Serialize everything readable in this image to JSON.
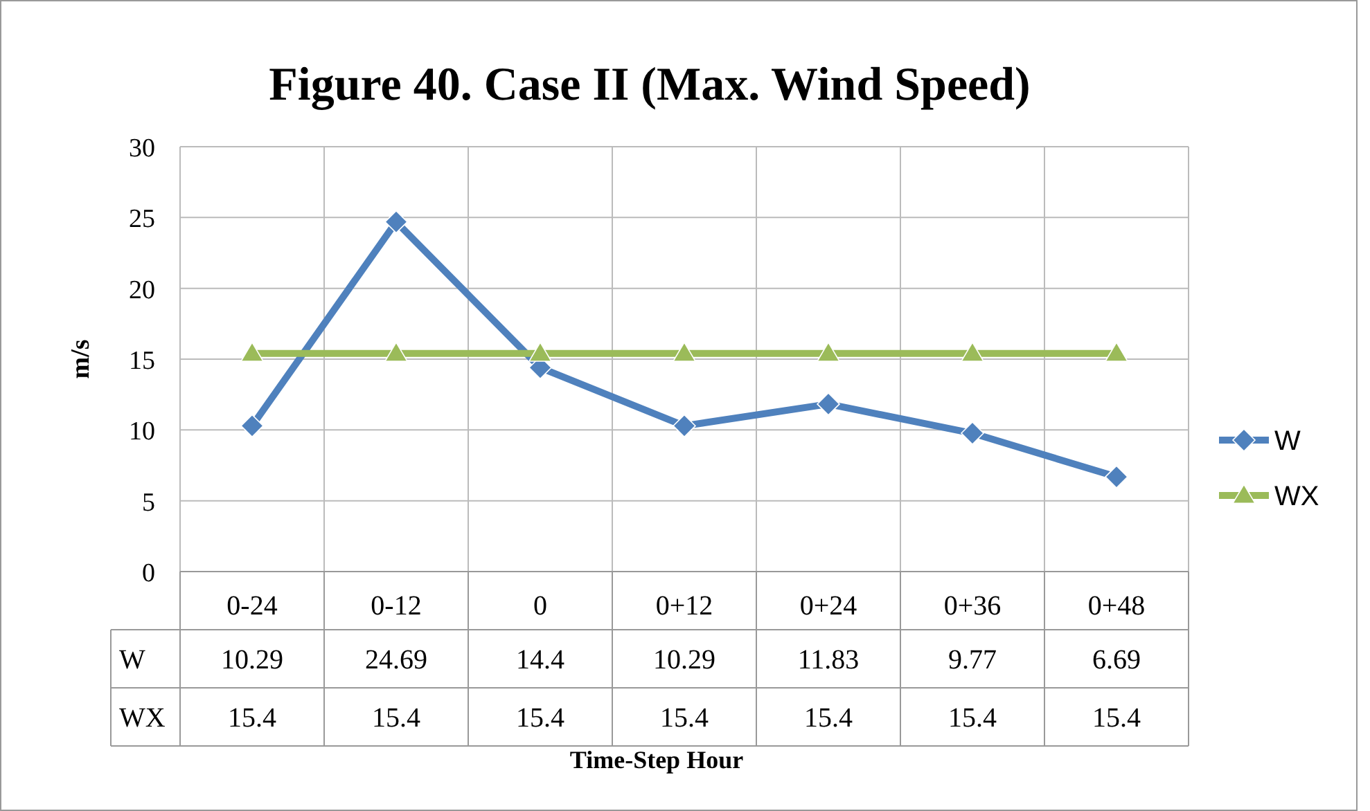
{
  "chart_data": {
    "type": "line",
    "title": "Figure 40. Case II (Max. Wind Speed)",
    "xlabel": "Time-Step Hour",
    "ylabel": "m/s",
    "categories": [
      "0-24",
      "0-12",
      "0",
      "0+12",
      "0+24",
      "0+36",
      "0+48"
    ],
    "series": [
      {
        "name": "W",
        "color": "#4f81bd",
        "marker": "diamond",
        "values": [
          10.29,
          24.69,
          14.4,
          10.29,
          11.83,
          9.77,
          6.69
        ]
      },
      {
        "name": "WX",
        "color": "#9bbb59",
        "marker": "triangle",
        "values": [
          15.4,
          15.4,
          15.4,
          15.4,
          15.4,
          15.4,
          15.4
        ]
      }
    ],
    "ylim": [
      0,
      30
    ],
    "yticks": [
      0,
      5,
      10,
      15,
      20,
      25,
      30
    ],
    "grid": true,
    "legend": "right",
    "data_labels": true
  }
}
